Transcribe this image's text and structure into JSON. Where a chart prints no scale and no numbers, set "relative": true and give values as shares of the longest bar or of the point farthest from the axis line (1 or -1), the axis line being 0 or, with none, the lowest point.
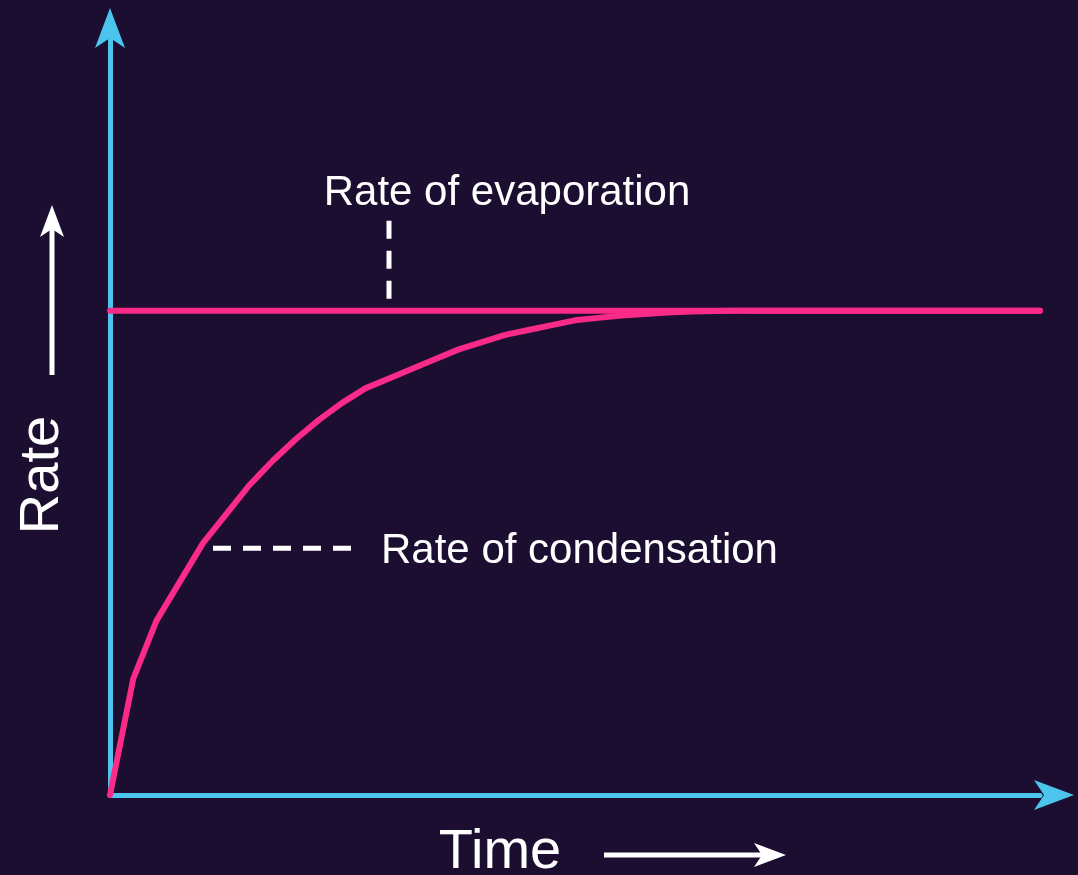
{
  "chart_data": {
    "type": "line",
    "relative": true,
    "xlabel": "Time",
    "ylabel": "Rate",
    "legend": false,
    "grid": false,
    "marker": "none",
    "line_style": "solid",
    "categories": [
      null,
      null,
      null,
      null,
      null,
      null,
      null,
      null,
      null,
      null,
      null,
      null,
      null,
      null,
      null,
      null,
      null,
      null,
      null,
      null,
      null,
      null,
      null,
      null,
      null,
      null,
      null,
      null,
      null,
      null,
      null,
      null,
      null,
      null,
      null,
      null,
      null,
      null,
      null,
      null,
      null
    ],
    "series": [
      {
        "name": "Rate of evaporation",
        "color": "#fa2a88",
        "values": [
          1,
          1,
          1,
          1,
          1,
          1,
          1,
          1,
          1,
          1,
          1,
          1,
          1,
          1,
          1,
          1,
          1,
          1,
          1,
          1,
          1,
          1,
          1,
          1,
          1,
          1,
          1,
          1,
          1,
          1,
          1,
          1,
          1,
          1,
          1,
          1,
          1,
          1,
          1,
          1,
          1
        ]
      },
      {
        "name": "Rate of condensation",
        "color": "#fa2a88",
        "values": [
          0,
          0.24,
          0.36,
          0.44,
          0.52,
          0.58,
          0.64,
          0.69,
          0.735,
          0.775,
          0.81,
          0.84,
          0.86,
          0.88,
          0.9,
          0.92,
          0.935,
          0.95,
          0.96,
          0.97,
          0.98,
          0.985,
          0.99,
          0.993,
          0.996,
          0.998,
          0.999,
          1,
          1,
          1,
          1,
          1,
          1,
          1,
          1,
          1,
          1,
          1,
          1,
          1,
          1
        ]
      }
    ]
  }
}
